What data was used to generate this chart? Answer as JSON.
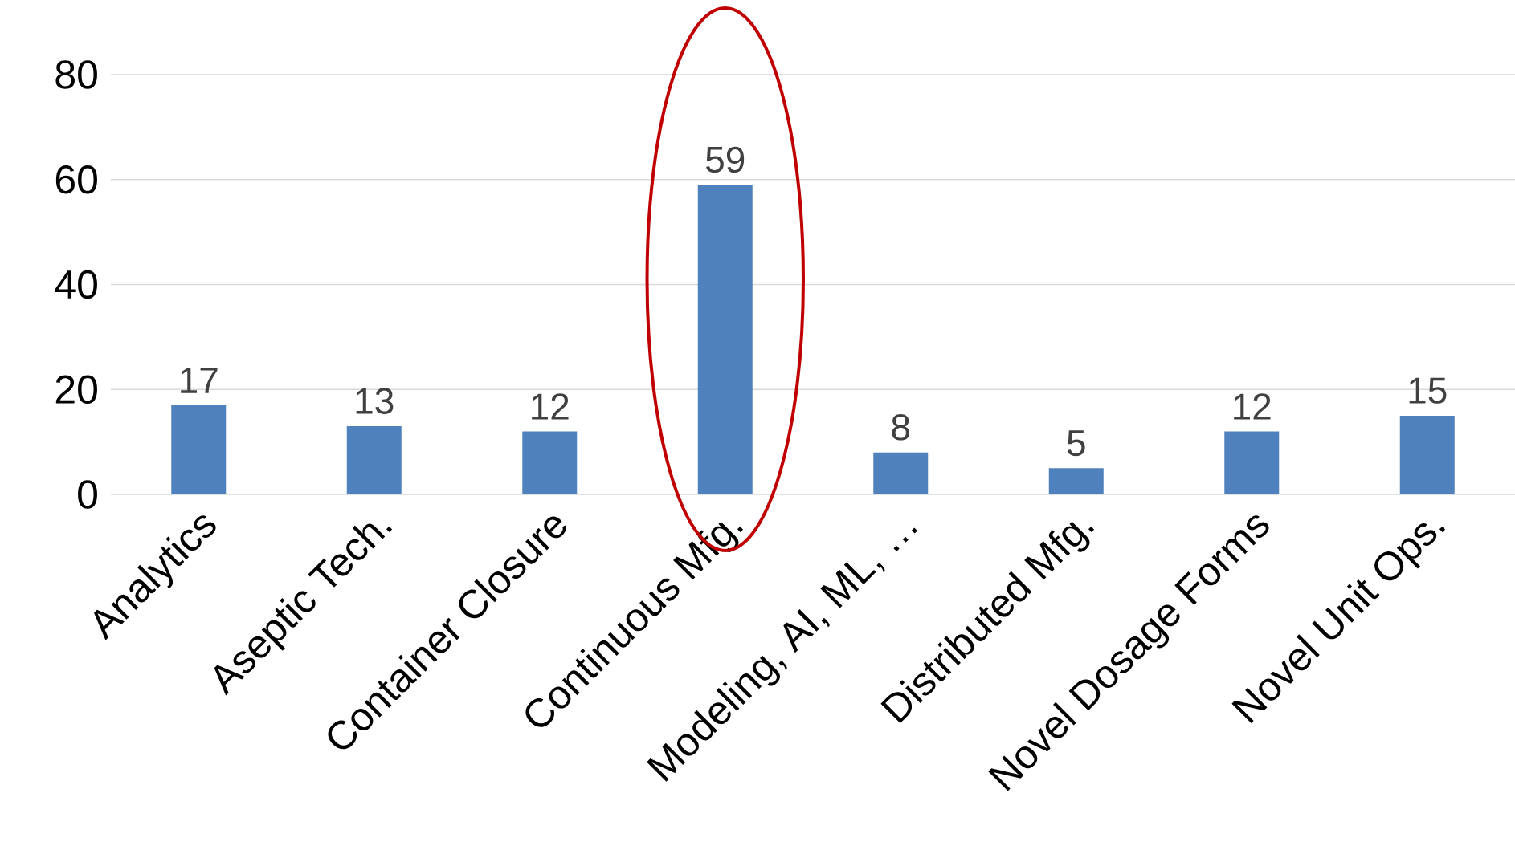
{
  "chart_data": {
    "type": "bar",
    "categories": [
      "Analytics",
      "Aseptic Tech.",
      "Container Closure",
      "Continuous Mfg.",
      "Modeling, AI, ML, …",
      "Distributed Mfg.",
      "Novel Dosage Forms",
      "Novel Unit Ops."
    ],
    "values": [
      17,
      13,
      12,
      59,
      8,
      5,
      12,
      15
    ],
    "color": "#4f81bd",
    "ylim": [
      0,
      80
    ],
    "yticks": [
      0,
      20,
      40,
      60,
      80
    ],
    "grid": "y",
    "data_labels": true
  }
}
